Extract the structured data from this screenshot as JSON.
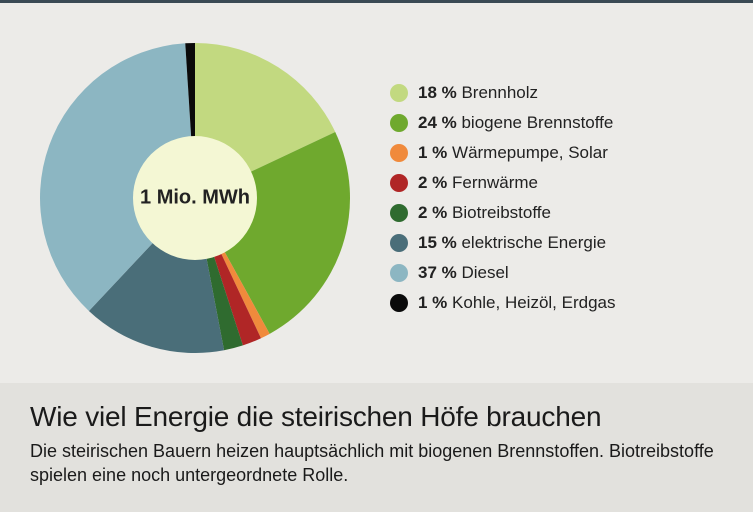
{
  "chart": {
    "type": "pie",
    "center_label": "1 Mio. MWh",
    "center_fill": "#f4f7d4",
    "inner_radius_ratio": 0.4,
    "outer_radius": 155,
    "start_angle_deg": 0,
    "background_color": "#ecebe8",
    "top_rule_color": "#3a4a54",
    "slices": [
      {
        "label": "Brennholz",
        "percent": 18,
        "color": "#c2d980"
      },
      {
        "label": "biogene Brennstoffe",
        "percent": 24,
        "color": "#6fa92e"
      },
      {
        "label": "Wärmepumpe, Solar",
        "percent": 1,
        "color": "#f08a3c"
      },
      {
        "label": "Fernwärme",
        "percent": 2,
        "color": "#b02626"
      },
      {
        "label": "Biotreibstoffe",
        "percent": 2,
        "color": "#2f6b2f"
      },
      {
        "label": "elektrische Energie",
        "percent": 15,
        "color": "#4a6e79"
      },
      {
        "label": "Diesel",
        "percent": 37,
        "color": "#8cb6c2"
      },
      {
        "label": "Kohle, Heizöl, Erdgas",
        "percent": 1,
        "color": "#0a0a0a"
      }
    ]
  },
  "legend": {
    "percent_suffix": " %",
    "swatch_radius": 9,
    "font_size": 17
  },
  "caption": {
    "title": "Wie viel Energie die steirischen Höfe brauchen",
    "body": "Die steirischen Bauern heizen hauptsächlich mit biogenen Brennstoffen. Biotreibstoffe spielen eine noch untergeordnete Rolle.",
    "title_fontsize": 28,
    "body_fontsize": 18,
    "background_color": "#e2e1dd",
    "text_color": "#1a1a1a"
  }
}
